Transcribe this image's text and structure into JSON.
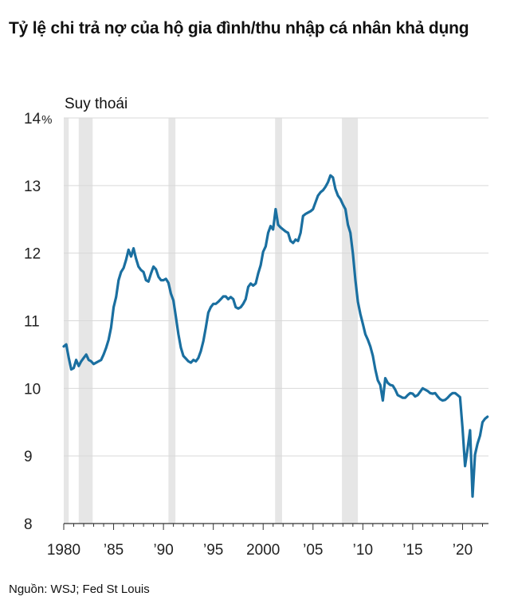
{
  "header": {
    "title": "Tỷ lệ chi trả nợ của hộ gia đình/thu nhập cá nhân khả dụng"
  },
  "footer": {
    "source": "Nguồn: WSJ; Fed St Louis"
  },
  "chart_data": {
    "type": "line",
    "title": "Tỷ lệ chi trả nợ của hộ gia đình/thu nhập cá nhân khả dụng",
    "xlabel": "",
    "ylabel": "",
    "ylim": [
      8,
      14
    ],
    "xlim": [
      1980,
      2022.6
    ],
    "y_ticks": [
      {
        "value": 14,
        "label": "14",
        "unit": "%"
      },
      {
        "value": 13,
        "label": "13"
      },
      {
        "value": 12,
        "label": "12"
      },
      {
        "value": 11,
        "label": "11"
      },
      {
        "value": 10,
        "label": "10"
      },
      {
        "value": 9,
        "label": "9"
      },
      {
        "value": 8,
        "label": "8"
      }
    ],
    "x_ticks": [
      {
        "value": 1980,
        "label": "1980"
      },
      {
        "value": 1985,
        "label": "’85"
      },
      {
        "value": 1990,
        "label": "’90"
      },
      {
        "value": 1995,
        "label": "’95"
      },
      {
        "value": 2000,
        "label": "2000"
      },
      {
        "value": 2005,
        "label": "’05"
      },
      {
        "value": 2010,
        "label": "’10"
      },
      {
        "value": 2015,
        "label": "’15"
      },
      {
        "value": 2020,
        "label": "’20"
      }
    ],
    "grid": true,
    "recession_label": "Suy thoái",
    "recession_color": "#e6e6e6",
    "recessions": [
      [
        1980.0,
        1980.5
      ],
      [
        1981.5,
        1982.9
      ],
      [
        1990.5,
        1991.2
      ],
      [
        2001.2,
        2001.9
      ],
      [
        2007.9,
        2009.5
      ]
    ],
    "series": [
      {
        "name": "",
        "color": "#1a6fa0",
        "points": [
          [
            1980.0,
            10.62
          ],
          [
            1980.25,
            10.65
          ],
          [
            1980.5,
            10.45
          ],
          [
            1980.75,
            10.28
          ],
          [
            1981.0,
            10.3
          ],
          [
            1981.25,
            10.42
          ],
          [
            1981.5,
            10.33
          ],
          [
            1981.75,
            10.4
          ],
          [
            1982.0,
            10.45
          ],
          [
            1982.25,
            10.5
          ],
          [
            1982.5,
            10.42
          ],
          [
            1982.75,
            10.4
          ],
          [
            1983.0,
            10.36
          ],
          [
            1983.25,
            10.38
          ],
          [
            1983.5,
            10.4
          ],
          [
            1983.75,
            10.42
          ],
          [
            1984.0,
            10.5
          ],
          [
            1984.25,
            10.6
          ],
          [
            1984.5,
            10.72
          ],
          [
            1984.75,
            10.9
          ],
          [
            1985.0,
            11.2
          ],
          [
            1985.25,
            11.35
          ],
          [
            1985.5,
            11.6
          ],
          [
            1985.75,
            11.72
          ],
          [
            1986.0,
            11.78
          ],
          [
            1986.25,
            11.9
          ],
          [
            1986.5,
            12.05
          ],
          [
            1986.75,
            11.95
          ],
          [
            1987.0,
            12.07
          ],
          [
            1987.25,
            11.92
          ],
          [
            1987.5,
            11.8
          ],
          [
            1987.75,
            11.75
          ],
          [
            1988.0,
            11.72
          ],
          [
            1988.25,
            11.6
          ],
          [
            1988.5,
            11.58
          ],
          [
            1988.75,
            11.7
          ],
          [
            1989.0,
            11.8
          ],
          [
            1989.25,
            11.76
          ],
          [
            1989.5,
            11.65
          ],
          [
            1989.75,
            11.6
          ],
          [
            1990.0,
            11.6
          ],
          [
            1990.25,
            11.62
          ],
          [
            1990.5,
            11.56
          ],
          [
            1990.75,
            11.4
          ],
          [
            1991.0,
            11.3
          ],
          [
            1991.25,
            11.05
          ],
          [
            1991.5,
            10.8
          ],
          [
            1991.75,
            10.6
          ],
          [
            1992.0,
            10.48
          ],
          [
            1992.25,
            10.44
          ],
          [
            1992.5,
            10.4
          ],
          [
            1992.75,
            10.38
          ],
          [
            1993.0,
            10.42
          ],
          [
            1993.25,
            10.4
          ],
          [
            1993.5,
            10.45
          ],
          [
            1993.75,
            10.55
          ],
          [
            1994.0,
            10.7
          ],
          [
            1994.25,
            10.9
          ],
          [
            1994.5,
            11.12
          ],
          [
            1994.75,
            11.2
          ],
          [
            1995.0,
            11.25
          ],
          [
            1995.25,
            11.25
          ],
          [
            1995.5,
            11.28
          ],
          [
            1995.75,
            11.32
          ],
          [
            1996.0,
            11.36
          ],
          [
            1996.25,
            11.36
          ],
          [
            1996.5,
            11.32
          ],
          [
            1996.75,
            11.35
          ],
          [
            1997.0,
            11.32
          ],
          [
            1997.25,
            11.2
          ],
          [
            1997.5,
            11.18
          ],
          [
            1997.75,
            11.2
          ],
          [
            1998.0,
            11.25
          ],
          [
            1998.25,
            11.32
          ],
          [
            1998.5,
            11.5
          ],
          [
            1998.75,
            11.55
          ],
          [
            1999.0,
            11.52
          ],
          [
            1999.25,
            11.55
          ],
          [
            1999.5,
            11.7
          ],
          [
            1999.75,
            11.82
          ],
          [
            2000.0,
            12.02
          ],
          [
            2000.25,
            12.1
          ],
          [
            2000.5,
            12.3
          ],
          [
            2000.75,
            12.4
          ],
          [
            2001.0,
            12.35
          ],
          [
            2001.25,
            12.65
          ],
          [
            2001.5,
            12.42
          ],
          [
            2001.75,
            12.38
          ],
          [
            2002.0,
            12.35
          ],
          [
            2002.25,
            12.32
          ],
          [
            2002.5,
            12.3
          ],
          [
            2002.75,
            12.18
          ],
          [
            2003.0,
            12.15
          ],
          [
            2003.25,
            12.2
          ],
          [
            2003.5,
            12.18
          ],
          [
            2003.75,
            12.3
          ],
          [
            2004.0,
            12.55
          ],
          [
            2004.25,
            12.58
          ],
          [
            2004.5,
            12.6
          ],
          [
            2004.75,
            12.62
          ],
          [
            2005.0,
            12.65
          ],
          [
            2005.25,
            12.75
          ],
          [
            2005.5,
            12.85
          ],
          [
            2005.75,
            12.9
          ],
          [
            2006.0,
            12.93
          ],
          [
            2006.25,
            12.98
          ],
          [
            2006.5,
            13.05
          ],
          [
            2006.75,
            13.15
          ],
          [
            2007.0,
            13.12
          ],
          [
            2007.25,
            12.95
          ],
          [
            2007.5,
            12.85
          ],
          [
            2007.75,
            12.8
          ],
          [
            2008.0,
            12.72
          ],
          [
            2008.25,
            12.65
          ],
          [
            2008.5,
            12.42
          ],
          [
            2008.75,
            12.3
          ],
          [
            2009.0,
            12.0
          ],
          [
            2009.25,
            11.6
          ],
          [
            2009.5,
            11.28
          ],
          [
            2009.75,
            11.1
          ],
          [
            2010.0,
            10.95
          ],
          [
            2010.25,
            10.8
          ],
          [
            2010.5,
            10.72
          ],
          [
            2010.75,
            10.62
          ],
          [
            2011.0,
            10.48
          ],
          [
            2011.25,
            10.28
          ],
          [
            2011.5,
            10.12
          ],
          [
            2011.75,
            10.05
          ],
          [
            2012.0,
            9.82
          ],
          [
            2012.25,
            10.15
          ],
          [
            2012.5,
            10.08
          ],
          [
            2012.75,
            10.05
          ],
          [
            2013.0,
            10.04
          ],
          [
            2013.25,
            9.98
          ],
          [
            2013.5,
            9.9
          ],
          [
            2013.75,
            9.88
          ],
          [
            2014.0,
            9.86
          ],
          [
            2014.25,
            9.86
          ],
          [
            2014.5,
            9.9
          ],
          [
            2014.75,
            9.93
          ],
          [
            2015.0,
            9.92
          ],
          [
            2015.25,
            9.88
          ],
          [
            2015.5,
            9.9
          ],
          [
            2015.75,
            9.95
          ],
          [
            2016.0,
            10.0
          ],
          [
            2016.25,
            9.98
          ],
          [
            2016.5,
            9.96
          ],
          [
            2016.75,
            9.93
          ],
          [
            2017.0,
            9.92
          ],
          [
            2017.25,
            9.93
          ],
          [
            2017.5,
            9.88
          ],
          [
            2017.75,
            9.84
          ],
          [
            2018.0,
            9.82
          ],
          [
            2018.25,
            9.83
          ],
          [
            2018.5,
            9.86
          ],
          [
            2018.75,
            9.9
          ],
          [
            2019.0,
            9.93
          ],
          [
            2019.25,
            9.93
          ],
          [
            2019.5,
            9.9
          ],
          [
            2019.75,
            9.87
          ],
          [
            2020.0,
            9.4
          ],
          [
            2020.25,
            8.85
          ],
          [
            2020.5,
            9.1
          ],
          [
            2020.75,
            9.38
          ],
          [
            2021.0,
            8.4
          ],
          [
            2021.25,
            9.02
          ],
          [
            2021.5,
            9.18
          ],
          [
            2021.75,
            9.3
          ],
          [
            2022.0,
            9.5
          ],
          [
            2022.25,
            9.55
          ],
          [
            2022.5,
            9.58
          ]
        ]
      }
    ]
  }
}
